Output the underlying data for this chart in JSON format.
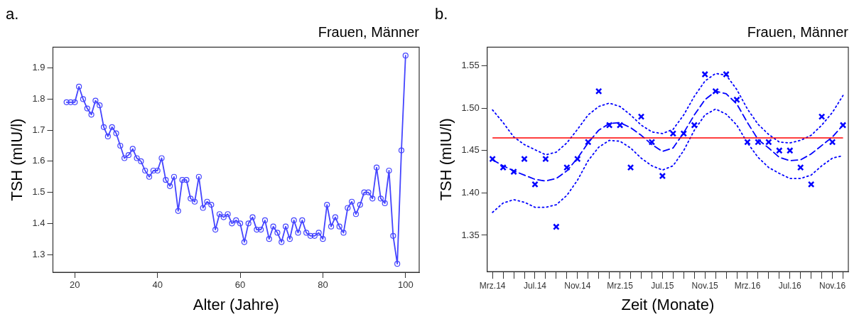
{
  "chart_data": [
    {
      "type": "line",
      "title": "a.",
      "subtitle": "Frauen, Männer",
      "xlabel": "Alter (Jahre)",
      "ylabel": "TSH (mIU/l)",
      "x": [
        18,
        19,
        20,
        21,
        22,
        23,
        24,
        25,
        26,
        27,
        28,
        29,
        30,
        31,
        32,
        33,
        34,
        35,
        36,
        37,
        38,
        39,
        40,
        41,
        42,
        43,
        44,
        45,
        46,
        47,
        48,
        49,
        50,
        51,
        52,
        53,
        54,
        55,
        56,
        57,
        58,
        59,
        60,
        61,
        62,
        63,
        64,
        65,
        66,
        67,
        68,
        69,
        70,
        71,
        72,
        73,
        74,
        75,
        76,
        77,
        78,
        79,
        80,
        81,
        82,
        83,
        84,
        85,
        86,
        87,
        88,
        89,
        90,
        91,
        92,
        93,
        94,
        95,
        96,
        97,
        98,
        99,
        100
      ],
      "values": [
        1.79,
        1.79,
        1.79,
        1.84,
        1.8,
        1.77,
        1.75,
        1.795,
        1.78,
        1.71,
        1.68,
        1.71,
        1.69,
        1.65,
        1.61,
        1.62,
        1.64,
        1.61,
        1.6,
        1.57,
        1.55,
        1.57,
        1.57,
        1.61,
        1.54,
        1.52,
        1.55,
        1.44,
        1.54,
        1.54,
        1.48,
        1.47,
        1.55,
        1.45,
        1.47,
        1.46,
        1.38,
        1.43,
        1.42,
        1.43,
        1.4,
        1.41,
        1.4,
        1.34,
        1.4,
        1.42,
        1.38,
        1.38,
        1.41,
        1.35,
        1.39,
        1.37,
        1.34,
        1.39,
        1.35,
        1.41,
        1.37,
        1.41,
        1.37,
        1.36,
        1.36,
        1.37,
        1.35,
        1.46,
        1.39,
        1.42,
        1.39,
        1.37,
        1.45,
        1.47,
        1.43,
        1.46,
        1.5,
        1.5,
        1.48,
        1.58,
        1.48,
        1.465,
        1.57,
        1.36,
        1.27,
        1.635,
        1.94
      ],
      "color": "#4444ff",
      "marker": "circle",
      "line_style": "solid",
      "grid": false,
      "legend": false,
      "xlim": [
        14.7,
        103.3
      ],
      "xticks": [
        20,
        40,
        60,
        80,
        100
      ],
      "ylim": [
        1.243,
        1.967
      ],
      "yticks": [
        1.3,
        1.4,
        1.5,
        1.6,
        1.7,
        1.8,
        1.9
      ]
    },
    {
      "type": "scatter",
      "title": "b.",
      "subtitle": "Frauen, Männer",
      "xlabel": "Zeit (Monate)",
      "ylabel": "TSH (mIU/l)",
      "categories": [
        "Mrz.14",
        null,
        null,
        null,
        "Jul.14",
        null,
        null,
        null,
        "Nov.14",
        null,
        null,
        null,
        "Mrz.15",
        null,
        null,
        null,
        "Jul.15",
        null,
        null,
        null,
        "Nov.15",
        null,
        null,
        null,
        "Mrz.16",
        null,
        null,
        null,
        "Jul.16",
        null,
        null,
        null,
        "Nov.16",
        null
      ],
      "series": [
        {
          "marker": "cross",
          "color": "#0000ff",
          "values": [
            1.44,
            1.43,
            1.425,
            1.44,
            1.41,
            1.44,
            1.36,
            1.43,
            1.44,
            1.46,
            1.52,
            1.48,
            1.48,
            1.43,
            1.49,
            1.46,
            1.42,
            1.47,
            1.47,
            1.48,
            1.54,
            1.52,
            1.54,
            1.51,
            1.46,
            1.46,
            1.46,
            1.45,
            1.45,
            1.43,
            1.41,
            1.49,
            1.46,
            1.48
          ]
        },
        {
          "type": "line",
          "marker": "none",
          "line_style": "dashed",
          "color": "#0000ff",
          "values": [
            1.439,
            1.432,
            1.426,
            1.421,
            1.416,
            1.414,
            1.417,
            1.426,
            1.441,
            1.459,
            1.474,
            1.482,
            1.483,
            1.477,
            1.468,
            1.457,
            1.449,
            1.453,
            1.471,
            1.492,
            1.51,
            1.52,
            1.517,
            1.505,
            1.483,
            1.463,
            1.453,
            1.442,
            1.438,
            1.439,
            1.446,
            1.456,
            1.466,
            1.48
          ]
        },
        {
          "type": "line",
          "marker": "none",
          "line_style": "dotted",
          "color": "#0000ff",
          "values": [
            1.498,
            1.483,
            1.466,
            1.457,
            1.451,
            1.445,
            1.448,
            1.459,
            1.475,
            1.492,
            1.502,
            1.506,
            1.502,
            1.492,
            1.48,
            1.472,
            1.47,
            1.475,
            1.492,
            1.514,
            1.532,
            1.541,
            1.539,
            1.522,
            1.499,
            1.481,
            1.469,
            1.46,
            1.459,
            1.462,
            1.468,
            1.48,
            1.495,
            1.515
          ]
        },
        {
          "type": "line",
          "marker": "none",
          "line_style": "dotted",
          "color": "#0000ff",
          "values": [
            1.377,
            1.388,
            1.392,
            1.389,
            1.383,
            1.383,
            1.386,
            1.397,
            1.415,
            1.438,
            1.454,
            1.462,
            1.461,
            1.453,
            1.441,
            1.432,
            1.427,
            1.432,
            1.45,
            1.474,
            1.492,
            1.499,
            1.493,
            1.48,
            1.459,
            1.442,
            1.43,
            1.423,
            1.417,
            1.417,
            1.421,
            1.432,
            1.441,
            1.444
          ]
        }
      ],
      "ref_lines": [
        {
          "axis": "y",
          "value": 1.465,
          "color": "#ff0000",
          "line_style": "solid"
        }
      ],
      "grid": false,
      "legend": false,
      "ylim": [
        1.307,
        1.572
      ],
      "yticks": [
        1.35,
        {
          "value": 1.4,
          "label": "1.40"
        },
        1.45,
        {
          "value": 1.5,
          "label": "1.50"
        },
        1.55
      ]
    }
  ]
}
